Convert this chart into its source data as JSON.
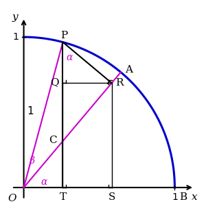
{
  "alpha_deg": 50,
  "beta_deg": 25,
  "figsize": [
    3.0,
    3.17
  ],
  "dpi": 100,
  "bg_color": "#ffffff",
  "circle_color": "#0000cc",
  "magenta_color": "#cc00cc",
  "black_color": "#000000",
  "xlim": [
    -0.13,
    1.18
  ],
  "ylim": [
    -0.13,
    1.18
  ]
}
